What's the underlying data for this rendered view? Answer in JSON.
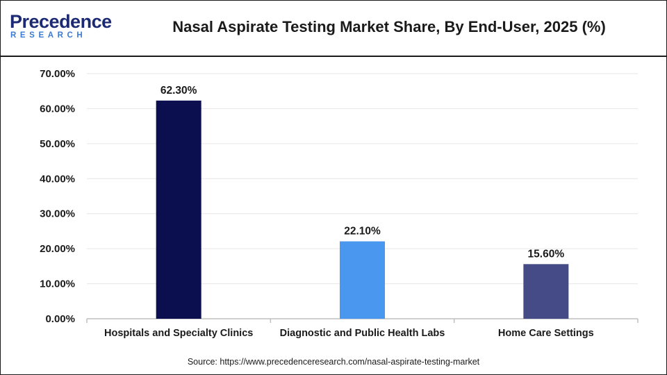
{
  "logo": {
    "main": "Precedence",
    "sub": "RESEARCH"
  },
  "colors": {
    "bar_1": "#0b0e4f",
    "bar_2": "#4a97f0",
    "bar_3": "#454b86",
    "grid": "#e6e6e6",
    "axis": "#bfbfbf",
    "text": "#1a1a1a"
  },
  "chart_data": {
    "type": "bar",
    "title": "Nasal Aspirate Testing Market Share, By End-User, 2025 (%)",
    "categories": [
      "Hospitals and Specialty Clinics",
      "Diagnostic and Public Health Labs",
      "Home Care Settings"
    ],
    "values": [
      62.3,
      22.1,
      15.6
    ],
    "data_labels": [
      "62.30%",
      "22.10%",
      "15.60%"
    ],
    "ylim": [
      0,
      70
    ],
    "yticks": [
      0,
      10,
      20,
      30,
      40,
      50,
      60,
      70
    ],
    "ytick_labels": [
      "0.00%",
      "10.00%",
      "20.00%",
      "30.00%",
      "40.00%",
      "50.00%",
      "60.00%",
      "70.00%"
    ],
    "grid": true,
    "legend": "none"
  },
  "source": "Source: https://www.precedenceresearch.com/nasal-aspirate-testing-market"
}
